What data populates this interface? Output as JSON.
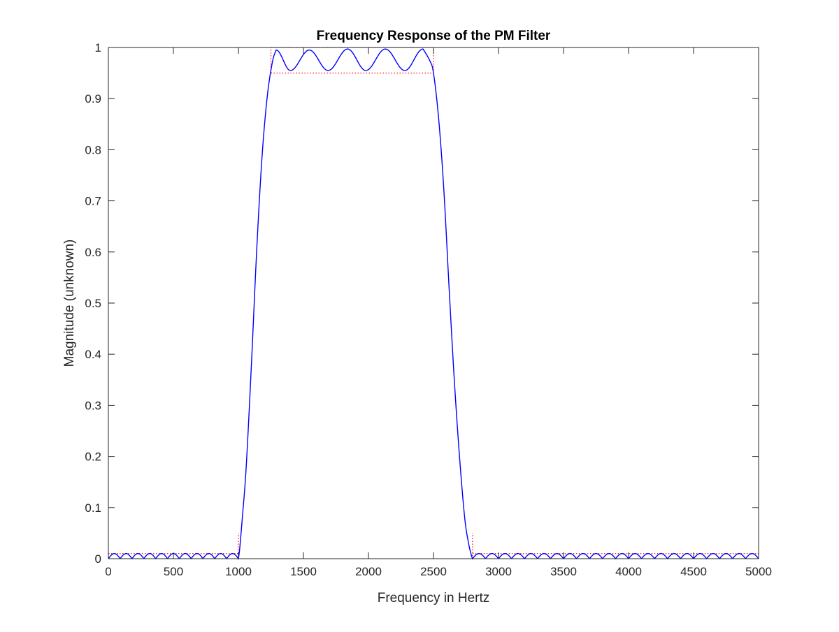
{
  "colors": {
    "response": "#0000ff",
    "spec": "#ff0000",
    "axes": "#262626",
    "background": "#ffffff"
  },
  "chart_data": {
    "type": "line",
    "title": "Frequency Response of the PM Filter",
    "xlabel": "Frequency in Hertz",
    "ylabel": "Magnitude (unknown)",
    "xlim": [
      0,
      5000
    ],
    "ylim": [
      0,
      1
    ],
    "grid": false,
    "legend": "none",
    "x_ticks": [
      0,
      500,
      1000,
      1500,
      2000,
      2500,
      3000,
      3500,
      4000,
      4500,
      5000
    ],
    "x_tick_labels": [
      "0",
      "500",
      "1000",
      "1500",
      "2000",
      "2500",
      "3000",
      "3500",
      "4000",
      "4500",
      "5000"
    ],
    "y_ticks": [
      0,
      0.1,
      0.2,
      0.3,
      0.4,
      0.5,
      0.6,
      0.7,
      0.8,
      0.9,
      1
    ],
    "y_tick_labels": [
      "0",
      "0.1",
      "0.2",
      "0.3",
      "0.4",
      "0.5",
      "0.6",
      "0.7",
      "0.8",
      "0.9",
      "1"
    ],
    "series": [
      {
        "kind": "stopband-ripple",
        "color": "#0000ff",
        "x_range": [
          0,
          1000
        ],
        "ripple_peak": 0.01,
        "ripple_count": 11
      },
      {
        "kind": "transition",
        "color": "#0000ff",
        "x": [
          1000,
          1010,
          1030,
          1060,
          1100,
          1140,
          1180,
          1220,
          1260,
          1290
        ],
        "y": [
          0.0,
          0.02,
          0.08,
          0.18,
          0.38,
          0.6,
          0.78,
          0.9,
          0.97,
          0.995
        ]
      },
      {
        "kind": "passband-ripple",
        "color": "#0000ff",
        "x": [
          1290,
          1400,
          1545,
          1690,
          1840,
          1980,
          2130,
          2280,
          2420
        ],
        "y": [
          0.995,
          0.955,
          0.995,
          0.955,
          0.997,
          0.955,
          0.997,
          0.955,
          0.997
        ]
      },
      {
        "kind": "transition",
        "color": "#0000ff",
        "x": [
          2420,
          2470,
          2500,
          2540,
          2580,
          2620,
          2660,
          2700,
          2740,
          2770,
          2790,
          2800
        ],
        "y": [
          0.997,
          0.975,
          0.95,
          0.86,
          0.72,
          0.53,
          0.35,
          0.2,
          0.08,
          0.03,
          0.008,
          0.0
        ]
      },
      {
        "kind": "stopband-ripple",
        "color": "#0000ff",
        "x_range": [
          2800,
          5000
        ],
        "ripple_peak": 0.01,
        "ripple_count": 22
      }
    ],
    "spec_lines": {
      "color": "#ff0000",
      "style": "dotted",
      "segments": [
        {
          "x": [
            0,
            1000
          ],
          "y": [
            0.01,
            0.01
          ]
        },
        {
          "x": [
            1000,
            1000
          ],
          "y": [
            0,
            0.05
          ]
        },
        {
          "x": [
            1250,
            2500
          ],
          "y": [
            1,
            1
          ]
        },
        {
          "x": [
            1250,
            2500
          ],
          "y": [
            0.95,
            0.95
          ]
        },
        {
          "x": [
            1250,
            1250
          ],
          "y": [
            0.95,
            1
          ]
        },
        {
          "x": [
            2500,
            2500
          ],
          "y": [
            0.95,
            1
          ]
        },
        {
          "x": [
            2800,
            2800
          ],
          "y": [
            0,
            0.05
          ]
        },
        {
          "x": [
            2800,
            5000
          ],
          "y": [
            0.01,
            0.01
          ]
        }
      ]
    }
  }
}
